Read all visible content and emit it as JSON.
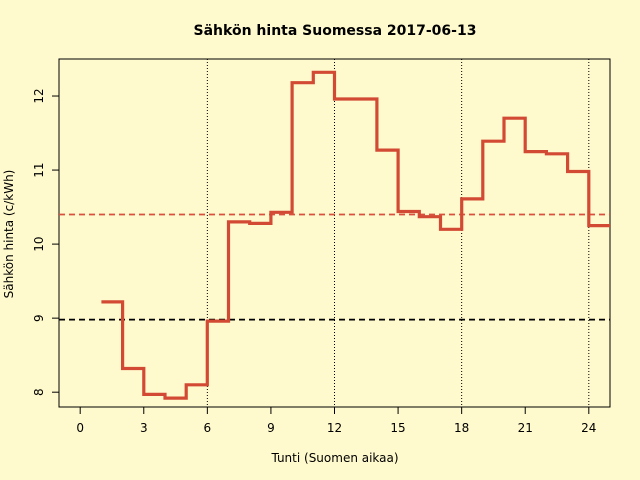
{
  "chart_data": {
    "type": "line",
    "style": "step",
    "title": "Sähkön hinta Suomessa 2017-06-13",
    "xlabel": "Tunti (Suomen aikaa)",
    "ylabel": "Sähkön hinta (c/kWh)",
    "xlim": [
      -1,
      25
    ],
    "ylim": [
      7.8,
      12.5
    ],
    "x_ticks": [
      0,
      3,
      6,
      9,
      12,
      15,
      18,
      21,
      24
    ],
    "y_ticks": [
      8,
      9,
      10,
      11,
      12
    ],
    "vlines": [
      6,
      12,
      18,
      24
    ],
    "hlines": [
      {
        "value": 8.98,
        "color": "#000000"
      },
      {
        "value": 10.4,
        "color": "#d9503f"
      }
    ],
    "series": [
      {
        "color": "#d24a34",
        "x": [
          1,
          2,
          3,
          4,
          5,
          6,
          7,
          8,
          9,
          10,
          11,
          12,
          13,
          14,
          15,
          16,
          17,
          18,
          19,
          20,
          21,
          22,
          23,
          24
        ],
        "values": [
          9.22,
          8.32,
          7.97,
          7.92,
          8.1,
          8.96,
          10.3,
          10.28,
          10.43,
          12.18,
          12.32,
          11.96,
          11.96,
          11.27,
          10.44,
          10.37,
          10.2,
          10.61,
          11.39,
          11.7,
          11.25,
          11.22,
          10.98,
          10.25
        ]
      }
    ]
  }
}
